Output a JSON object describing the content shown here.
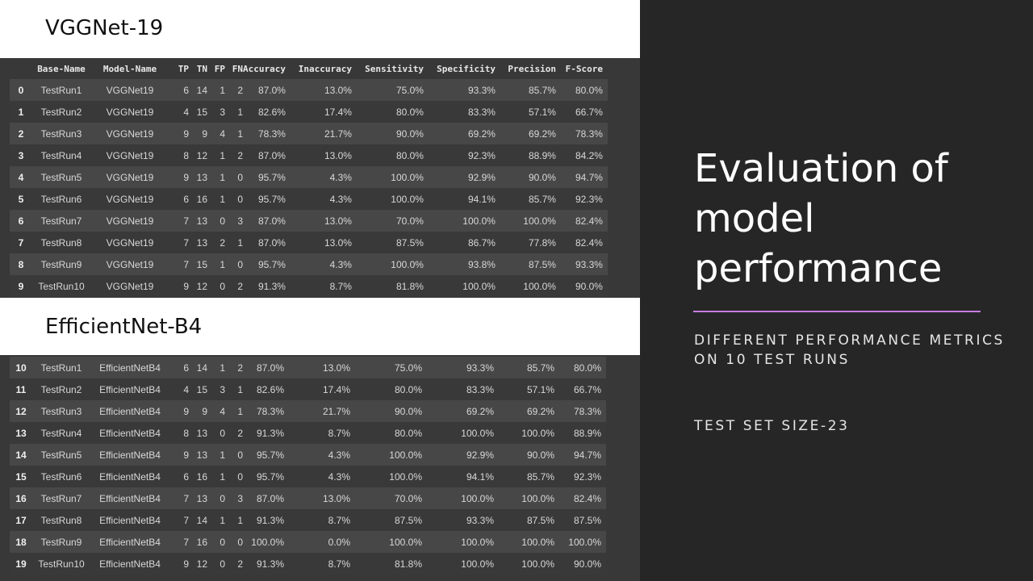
{
  "left": {
    "section1_title": "VGGNet-19",
    "section2_title": "EfficientNet-B4",
    "columns": [
      "",
      "Base-Name",
      "Model-Name",
      "TP",
      "TN",
      "FP",
      "FN",
      "Accuracy",
      "Inaccuracy",
      "Sensitivity",
      "Specificity",
      "Precision",
      "F-Score"
    ],
    "vgg_rows": [
      [
        "0",
        "TestRun1",
        "VGGNet19",
        "6",
        "14",
        "1",
        "2",
        "87.0%",
        "13.0%",
        "75.0%",
        "93.3%",
        "85.7%",
        "80.0%"
      ],
      [
        "1",
        "TestRun2",
        "VGGNet19",
        "4",
        "15",
        "3",
        "1",
        "82.6%",
        "17.4%",
        "80.0%",
        "83.3%",
        "57.1%",
        "66.7%"
      ],
      [
        "2",
        "TestRun3",
        "VGGNet19",
        "9",
        "9",
        "4",
        "1",
        "78.3%",
        "21.7%",
        "90.0%",
        "69.2%",
        "69.2%",
        "78.3%"
      ],
      [
        "3",
        "TestRun4",
        "VGGNet19",
        "8",
        "12",
        "1",
        "2",
        "87.0%",
        "13.0%",
        "80.0%",
        "92.3%",
        "88.9%",
        "84.2%"
      ],
      [
        "4",
        "TestRun5",
        "VGGNet19",
        "9",
        "13",
        "1",
        "0",
        "95.7%",
        "4.3%",
        "100.0%",
        "92.9%",
        "90.0%",
        "94.7%"
      ],
      [
        "5",
        "TestRun6",
        "VGGNet19",
        "6",
        "16",
        "1",
        "0",
        "95.7%",
        "4.3%",
        "100.0%",
        "94.1%",
        "85.7%",
        "92.3%"
      ],
      [
        "6",
        "TestRun7",
        "VGGNet19",
        "7",
        "13",
        "0",
        "3",
        "87.0%",
        "13.0%",
        "70.0%",
        "100.0%",
        "100.0%",
        "82.4%"
      ],
      [
        "7",
        "TestRun8",
        "VGGNet19",
        "7",
        "13",
        "2",
        "1",
        "87.0%",
        "13.0%",
        "87.5%",
        "86.7%",
        "77.8%",
        "82.4%"
      ],
      [
        "8",
        "TestRun9",
        "VGGNet19",
        "7",
        "15",
        "1",
        "0",
        "95.7%",
        "4.3%",
        "100.0%",
        "93.8%",
        "87.5%",
        "93.3%"
      ],
      [
        "9",
        "TestRun10",
        "VGGNet19",
        "9",
        "12",
        "0",
        "2",
        "91.3%",
        "8.7%",
        "81.8%",
        "100.0%",
        "100.0%",
        "90.0%"
      ]
    ],
    "eff_rows": [
      [
        "10",
        "TestRun1",
        "EfficientNetB4",
        "6",
        "14",
        "1",
        "2",
        "87.0%",
        "13.0%",
        "75.0%",
        "93.3%",
        "85.7%",
        "80.0%"
      ],
      [
        "11",
        "TestRun2",
        "EfficientNetB4",
        "4",
        "15",
        "3",
        "1",
        "82.6%",
        "17.4%",
        "80.0%",
        "83.3%",
        "57.1%",
        "66.7%"
      ],
      [
        "12",
        "TestRun3",
        "EfficientNetB4",
        "9",
        "9",
        "4",
        "1",
        "78.3%",
        "21.7%",
        "90.0%",
        "69.2%",
        "69.2%",
        "78.3%"
      ],
      [
        "13",
        "TestRun4",
        "EfficientNetB4",
        "8",
        "13",
        "0",
        "2",
        "91.3%",
        "8.7%",
        "80.0%",
        "100.0%",
        "100.0%",
        "88.9%"
      ],
      [
        "14",
        "TestRun5",
        "EfficientNetB4",
        "9",
        "13",
        "1",
        "0",
        "95.7%",
        "4.3%",
        "100.0%",
        "92.9%",
        "90.0%",
        "94.7%"
      ],
      [
        "15",
        "TestRun6",
        "EfficientNetB4",
        "6",
        "16",
        "1",
        "0",
        "95.7%",
        "4.3%",
        "100.0%",
        "94.1%",
        "85.7%",
        "92.3%"
      ],
      [
        "16",
        "TestRun7",
        "EfficientNetB4",
        "7",
        "13",
        "0",
        "3",
        "87.0%",
        "13.0%",
        "70.0%",
        "100.0%",
        "100.0%",
        "82.4%"
      ],
      [
        "17",
        "TestRun8",
        "EfficientNetB4",
        "7",
        "14",
        "1",
        "1",
        "91.3%",
        "8.7%",
        "87.5%",
        "93.3%",
        "87.5%",
        "87.5%"
      ],
      [
        "18",
        "TestRun9",
        "EfficientNetB4",
        "7",
        "16",
        "0",
        "0",
        "100.0%",
        "0.0%",
        "100.0%",
        "100.0%",
        "100.0%",
        "100.0%"
      ],
      [
        "19",
        "TestRun10",
        "EfficientNetB4",
        "9",
        "12",
        "0",
        "2",
        "91.3%",
        "8.7%",
        "81.8%",
        "100.0%",
        "100.0%",
        "90.0%"
      ]
    ]
  },
  "right": {
    "title_lines": [
      "Evaluation of",
      "model",
      "performance"
    ],
    "subtitle": "Different performance metrics on 10 test runs",
    "note": "TEST SET SIZE-23",
    "accent_color": "#c77ddf"
  }
}
